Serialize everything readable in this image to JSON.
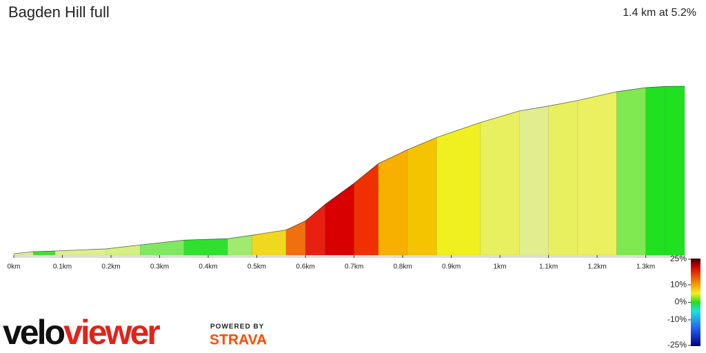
{
  "chart_data": {
    "type": "profile",
    "title": "Bagden Hill full",
    "subtitle": "1.4 km at 5.2%",
    "x": [
      0,
      0.04,
      0.085,
      0.19,
      0.26,
      0.35,
      0.44,
      0.49,
      0.56,
      0.6,
      0.64,
      0.7,
      0.75,
      0.81,
      0.87,
      0.96,
      1.04,
      1.1,
      1.16,
      1.24,
      1.3,
      1.34,
      1.38
    ],
    "y": [
      0.6,
      1.5,
      1.8,
      2.7,
      4.4,
      6.5,
      7.1,
      8.6,
      10.9,
      14.8,
      21.9,
      31.1,
      39.6,
      45.6,
      50.9,
      57.4,
      62.4,
      64.5,
      66.9,
      70.7,
      72.5,
      73.0,
      73.1
    ],
    "segment_colors": [
      "#e0ec90",
      "#44e030",
      "#e0ee90",
      "#d4f080",
      "#80e860",
      "#30e030",
      "#a0ea70",
      "#f0d820",
      "#f07010",
      "#e82010",
      "#d80000",
      "#f03000",
      "#f8b000",
      "#f4c400",
      "#f0f020",
      "#e8f060",
      "#e0ee90",
      "#e8f060",
      "#eaf060",
      "#80e850",
      "#20e020",
      "#20e020"
    ],
    "xlim": [
      0,
      1.38
    ],
    "ylim": [
      0,
      73.1
    ],
    "xticks": [
      {
        "value": 0,
        "label": "0km"
      },
      {
        "value": 0.1,
        "label": "0.1km"
      },
      {
        "value": 0.2,
        "label": "0.2km"
      },
      {
        "value": 0.3,
        "label": "0.3km"
      },
      {
        "value": 0.4,
        "label": "0.4km"
      },
      {
        "value": 0.5,
        "label": "0.5km"
      },
      {
        "value": 0.6,
        "label": "0.6km"
      },
      {
        "value": 0.7,
        "label": "0.7km"
      },
      {
        "value": 0.8,
        "label": "0.8km"
      },
      {
        "value": 0.9,
        "label": "0.9km"
      },
      {
        "value": 1,
        "label": "1km"
      },
      {
        "value": 1.1,
        "label": "1.1km"
      },
      {
        "value": 1.2,
        "label": "1.2km"
      },
      {
        "value": 1.3,
        "label": "1.3km"
      }
    ],
    "gradient_lim": [
      -25,
      25
    ],
    "gradient_ticks": [
      {
        "value": 25,
        "label": "25%"
      },
      {
        "value": 10,
        "label": "10%"
      },
      {
        "value": 0,
        "label": "0%"
      },
      {
        "value": -10,
        "label": "-10%"
      },
      {
        "value": -25,
        "label": "-25%"
      }
    ]
  },
  "branding": {
    "logo_parts": [
      "velo",
      "viewer"
    ],
    "powered_by": "POWERED BY",
    "strava": "STRAVA"
  }
}
